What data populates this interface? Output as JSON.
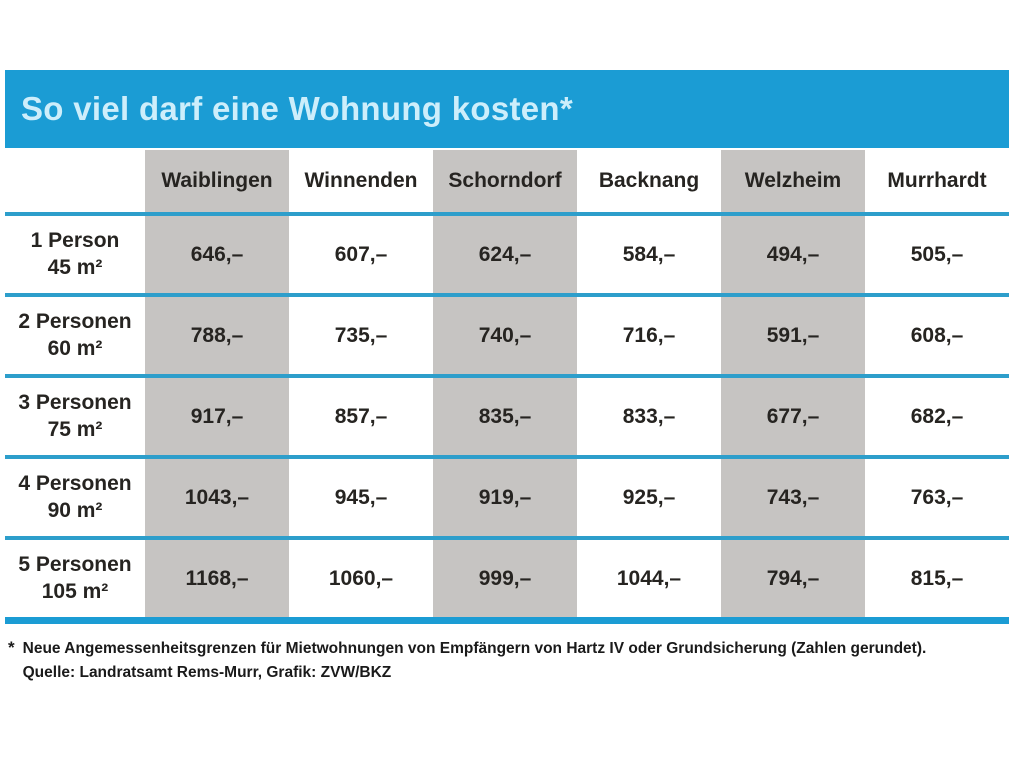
{
  "title": "So viel darf eine Wohnung kosten*",
  "table": {
    "columns": [
      "Waiblingen",
      "Winnenden",
      "Schorndorf",
      "Backnang",
      "Welzheim",
      "Murrhardt"
    ],
    "rows": [
      {
        "label_line1": "1 Person",
        "label_line2": "45 m²",
        "values": [
          "646,–",
          "607,–",
          "624,–",
          "584,–",
          "494,–",
          "505,–"
        ]
      },
      {
        "label_line1": "2 Personen",
        "label_line2": "60 m²",
        "values": [
          "788,–",
          "735,–",
          "740,–",
          "716,–",
          "591,–",
          "608,–"
        ]
      },
      {
        "label_line1": "3 Personen",
        "label_line2": "75 m²",
        "values": [
          "917,–",
          "857,–",
          "835,–",
          "833,–",
          "677,–",
          "682,–"
        ]
      },
      {
        "label_line1": "4 Personen",
        "label_line2": "90 m²",
        "values": [
          "1043,–",
          "945,–",
          "919,–",
          "925,–",
          "743,–",
          "763,–"
        ]
      },
      {
        "label_line1": "5 Personen",
        "label_line2": "105 m²",
        "values": [
          "1168,–",
          "1060,–",
          "999,–",
          "1044,–",
          "794,–",
          "815,–"
        ]
      }
    ]
  },
  "footnote": {
    "marker": "*",
    "line1": "Neue Angemessenheitsgrenzen für Mietwohnungen von Empfängern von Hartz IV oder Grundsicherung (Zahlen gerundet).",
    "line2": "Quelle:  Landratsamt Rems-Murr, Grafik:  ZVW/BKZ"
  },
  "colors": {
    "title_bar": "#1b9cd4",
    "title_text": "#cdeefb",
    "gray_column": "#c6c4c2",
    "row_separator": "#2d9ecb",
    "bottom_border": "#1b9cd4",
    "text": "#262421"
  },
  "chart_data": {
    "type": "table",
    "title": "So viel darf eine Wohnung kosten*",
    "columns": [
      "Waiblingen",
      "Winnenden",
      "Schorndorf",
      "Backnang",
      "Welzheim",
      "Murrhardt"
    ],
    "row_labels": [
      "1 Person 45 m²",
      "2 Personen 60 m²",
      "3 Personen 75 m²",
      "4 Personen 90 m²",
      "5 Personen 105 m²"
    ],
    "values_eur": [
      [
        646,
        607,
        624,
        584,
        494,
        505
      ],
      [
        788,
        735,
        740,
        716,
        591,
        608
      ],
      [
        917,
        857,
        835,
        833,
        677,
        682
      ],
      [
        1043,
        945,
        919,
        925,
        743,
        763
      ],
      [
        1168,
        1060,
        999,
        1044,
        794,
        815
      ]
    ],
    "footnote": "* Neue Angemessenheitsgrenzen für Mietwohnungen von Empfängern von Hartz IV oder Grundsicherung (Zahlen gerundet).",
    "source_line": "Quelle: Landratsamt Rems-Murr, Grafik: ZVW/BKZ",
    "layout": "gray stripes on columns 1, 3, 5 (Waiblingen, Schorndorf, Welzheim)"
  }
}
